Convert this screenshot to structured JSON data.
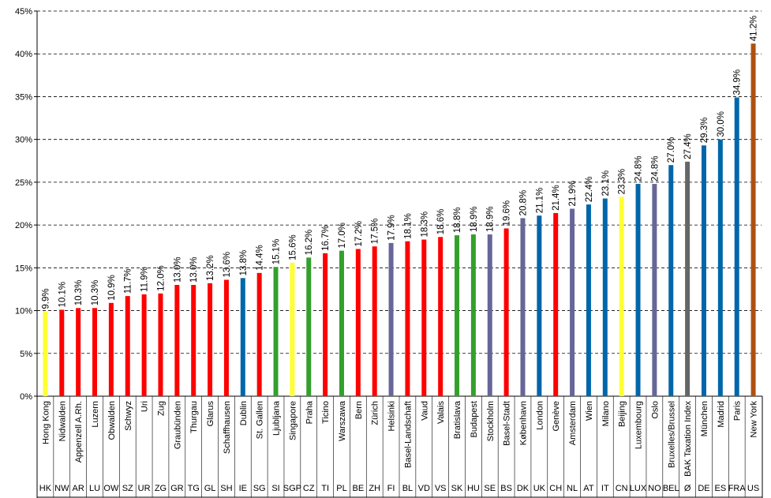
{
  "chart_data": {
    "type": "bar",
    "categories": [
      "Hong Kong",
      "Nidwalden",
      "Appenzell A.Rh.",
      "Luzern",
      "Obwalden",
      "Schwyz",
      "Uri",
      "Zug",
      "Graubünden",
      "Thurgau",
      "Glarus",
      "Schaffhausen",
      "Dublin",
      "St. Gallen",
      "Ljubljana",
      "Singapore",
      "Praha",
      "Ticino",
      "Warszawa",
      "Bern",
      "Zürich",
      "Helsinki",
      "Basel-Landschaft",
      "Vaud",
      "Valais",
      "Bratislava",
      "Budapest",
      "Stockholm",
      "Basel-Stadt",
      "København",
      "London",
      "Genève",
      "Amsterdam",
      "Wien",
      "Milano",
      "Beijing",
      "Luxembourg",
      "Oslo",
      "Bruxelles/Brussel",
      "BAK Taxation Index",
      "München",
      "Madrid",
      "Paris",
      "New York"
    ],
    "category_codes": [
      "HK",
      "NW",
      "AR",
      "LU",
      "OW",
      "SZ",
      "UR",
      "ZG",
      "GR",
      "TG",
      "GL",
      "SH",
      "IE",
      "SG",
      "SI",
      "SGP",
      "CZ",
      "TI",
      "PL",
      "BE",
      "ZH",
      "FI",
      "BL",
      "VD",
      "VS",
      "SK",
      "HU",
      "SE",
      "BS",
      "DK",
      "UK",
      "CH",
      "NL",
      "AT",
      "IT",
      "CN",
      "LUX",
      "NO",
      "BEL",
      "Ø",
      "DE",
      "ES",
      "FRA",
      "US"
    ],
    "values": [
      9.9,
      10.1,
      10.3,
      10.3,
      10.9,
      11.7,
      11.9,
      12.0,
      13.0,
      13.0,
      13.2,
      13.6,
      13.8,
      14.4,
      15.1,
      15.6,
      16.2,
      16.7,
      17.0,
      17.2,
      17.5,
      17.9,
      18.1,
      18.3,
      18.6,
      18.8,
      18.9,
      18.9,
      19.6,
      20.8,
      21.1,
      21.4,
      21.9,
      22.4,
      23.1,
      23.3,
      24.8,
      24.8,
      27.0,
      27.4,
      29.3,
      30.0,
      34.9,
      41.2
    ],
    "value_labels": [
      "9.9%",
      "10.1%",
      "10.3%",
      "10.3%",
      "10.9%",
      "11.7%",
      "11.9%",
      "12.0%",
      "13.0%",
      "13.0%",
      "13.2%",
      "13.6%",
      "13.8%",
      "14.4%",
      "15.1%",
      "15.6%",
      "16.2%",
      "16.7%",
      "17.0%",
      "17.2%",
      "17.5%",
      "17.9%",
      "18.1%",
      "18.3%",
      "18.6%",
      "18.8%",
      "18.9%",
      "18.9%",
      "19.6%",
      "20.8%",
      "21.1%",
      "21.4%",
      "21.9%",
      "22.4%",
      "23.1%",
      "23.3%",
      "24.8%",
      "24.8%",
      "27.0%",
      "27.4%",
      "29.3%",
      "30.0%",
      "34.9%",
      "41.2%"
    ],
    "colors": [
      "#ffff33",
      "#ff0000",
      "#ff0000",
      "#ff0000",
      "#ff0000",
      "#ff0000",
      "#ff0000",
      "#ff0000",
      "#ff0000",
      "#ff0000",
      "#ff0000",
      "#ff0000",
      "#0066aa",
      "#ff0000",
      "#33a02c",
      "#ffff33",
      "#33a02c",
      "#ff0000",
      "#33a02c",
      "#ff0000",
      "#ff0000",
      "#666699",
      "#ff0000",
      "#ff0000",
      "#ff0000",
      "#33a02c",
      "#33a02c",
      "#666699",
      "#ff0000",
      "#666699",
      "#0066aa",
      "#ff0000",
      "#666699",
      "#0066aa",
      "#0066aa",
      "#ffff33",
      "#0066aa",
      "#666699",
      "#0066aa",
      "#666666",
      "#0066aa",
      "#0066aa",
      "#0066aa",
      "#b05010"
    ],
    "ylim": [
      0,
      45
    ],
    "yticks": [
      {
        "value": 0,
        "label": "0%"
      },
      {
        "value": 5,
        "label": "5%"
      },
      {
        "value": 10,
        "label": "10%"
      },
      {
        "value": 15,
        "label": "15%"
      },
      {
        "value": 20,
        "label": "20%"
      },
      {
        "value": 25,
        "label": "25%"
      },
      {
        "value": 30,
        "label": "30%"
      },
      {
        "value": 35,
        "label": "35%"
      },
      {
        "value": 40,
        "label": "40%"
      },
      {
        "value": 45,
        "label": "45%"
      }
    ],
    "grid": true
  }
}
